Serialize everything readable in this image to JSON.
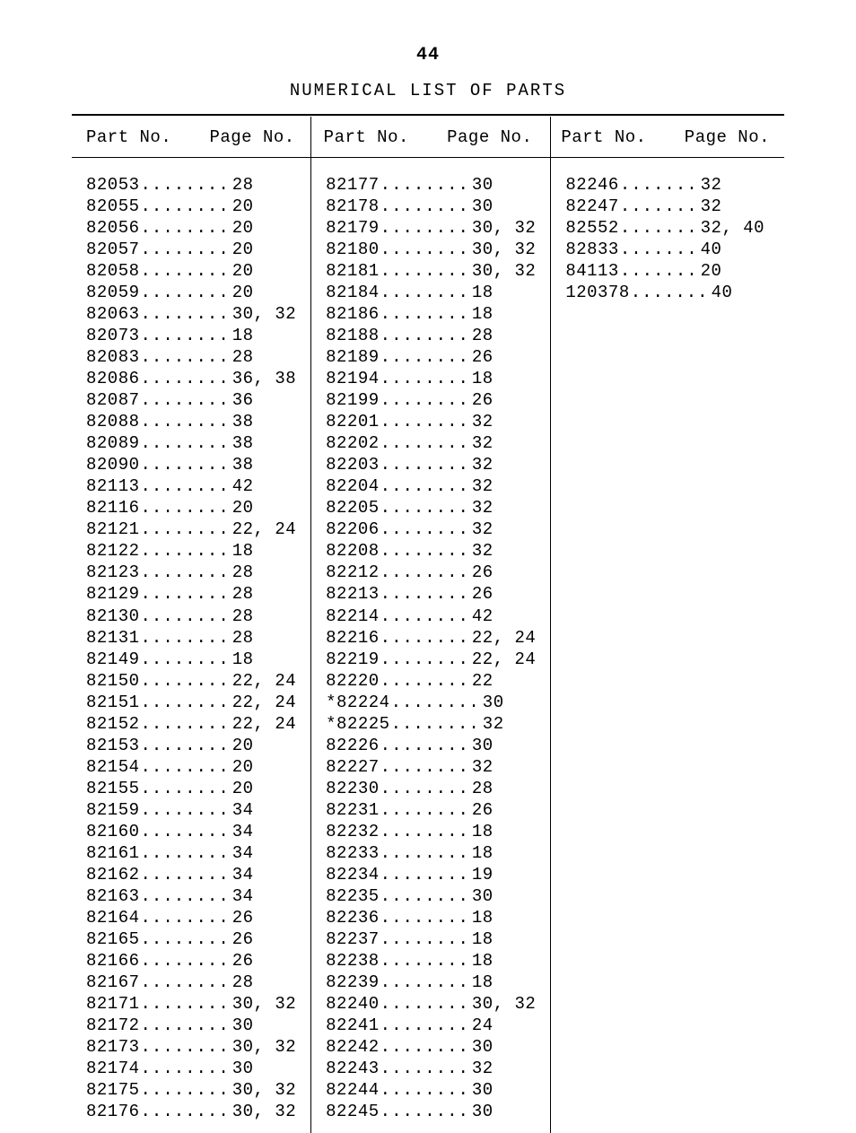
{
  "page_number": "44",
  "title": "NUMERICAL LIST OF PARTS",
  "header": {
    "part": "Part No.",
    "page": "Page No."
  },
  "dots": "........",
  "dots_short": ".......",
  "columns": [
    [
      {
        "part": "82053",
        "page": "28"
      },
      {
        "part": "82055",
        "page": "20"
      },
      {
        "part": "82056",
        "page": "20"
      },
      {
        "part": "82057",
        "page": "20"
      },
      {
        "part": "82058",
        "page": "20"
      },
      {
        "part": "82059",
        "page": "20"
      },
      {
        "part": "82063",
        "page": "30, 32"
      },
      {
        "part": "82073",
        "page": "18"
      },
      {
        "part": "82083",
        "page": "28"
      },
      {
        "part": "82086",
        "page": "36, 38"
      },
      {
        "part": "82087",
        "page": "36"
      },
      {
        "part": "82088",
        "page": "38"
      },
      {
        "part": "82089",
        "page": "38"
      },
      {
        "part": "82090",
        "page": "38"
      },
      {
        "part": "82113",
        "page": "42"
      },
      {
        "part": "82116",
        "page": "20"
      },
      {
        "part": "82121",
        "page": "22, 24"
      },
      {
        "part": "82122",
        "page": "18"
      },
      {
        "part": "82123",
        "page": "28"
      },
      {
        "part": "82129",
        "page": "28"
      },
      {
        "part": "82130",
        "page": "28"
      },
      {
        "part": "82131",
        "page": "28"
      },
      {
        "part": "82149",
        "page": "18"
      },
      {
        "part": "82150",
        "page": "22, 24"
      },
      {
        "part": "82151",
        "page": "22, 24"
      },
      {
        "part": "82152",
        "page": "22, 24"
      },
      {
        "part": "82153",
        "page": "20"
      },
      {
        "part": "82154",
        "page": "20"
      },
      {
        "part": "82155",
        "page": "20"
      },
      {
        "part": "82159",
        "page": "34"
      },
      {
        "part": "82160",
        "page": "34"
      },
      {
        "part": "82161",
        "page": "34"
      },
      {
        "part": "82162",
        "page": "34"
      },
      {
        "part": "82163",
        "page": "34"
      },
      {
        "part": "82164",
        "page": "26"
      },
      {
        "part": "82165",
        "page": "26"
      },
      {
        "part": "82166",
        "page": "26"
      },
      {
        "part": "82167",
        "page": "28"
      },
      {
        "part": "82171",
        "page": "30, 32"
      },
      {
        "part": "82172",
        "page": "30"
      },
      {
        "part": "82173",
        "page": "30, 32"
      },
      {
        "part": "82174",
        "page": "30"
      },
      {
        "part": "82175",
        "page": "30, 32"
      },
      {
        "part": "82176",
        "page": "30, 32"
      }
    ],
    [
      {
        "part": "82177",
        "page": "30"
      },
      {
        "part": "82178",
        "page": "30"
      },
      {
        "part": "82179",
        "page": "30, 32"
      },
      {
        "part": "82180",
        "page": "30, 32"
      },
      {
        "part": "82181",
        "page": "30, 32"
      },
      {
        "part": "82184",
        "page": "18"
      },
      {
        "part": "82186",
        "page": "18"
      },
      {
        "part": "82188",
        "page": "28"
      },
      {
        "part": "82189",
        "page": "26"
      },
      {
        "part": "82194",
        "page": "18"
      },
      {
        "part": "82199",
        "page": "26"
      },
      {
        "part": "82201",
        "page": "32"
      },
      {
        "part": "82202",
        "page": "32"
      },
      {
        "part": "82203",
        "page": "32"
      },
      {
        "part": "82204",
        "page": "32"
      },
      {
        "part": "82205",
        "page": "32"
      },
      {
        "part": "82206",
        "page": "32"
      },
      {
        "part": "82208",
        "page": "32"
      },
      {
        "part": "82212",
        "page": "26"
      },
      {
        "part": "82213",
        "page": "26"
      },
      {
        "part": "82214",
        "page": "42"
      },
      {
        "part": "82216",
        "page": "22, 24"
      },
      {
        "part": "82219",
        "page": "22, 24"
      },
      {
        "part": "82220",
        "page": "22"
      },
      {
        "part": "*82224",
        "page": "30"
      },
      {
        "part": "*82225",
        "page": "32"
      },
      {
        "part": "82226",
        "page": "30"
      },
      {
        "part": "82227",
        "page": "32"
      },
      {
        "part": "82230",
        "page": "28"
      },
      {
        "part": "82231",
        "page": "26"
      },
      {
        "part": "82232",
        "page": "18"
      },
      {
        "part": "82233",
        "page": "18"
      },
      {
        "part": "82234",
        "page": "19"
      },
      {
        "part": "82235",
        "page": "30"
      },
      {
        "part": "82236",
        "page": "18"
      },
      {
        "part": "82237",
        "page": "18"
      },
      {
        "part": "82238",
        "page": "18"
      },
      {
        "part": "82239",
        "page": "18"
      },
      {
        "part": "82240",
        "page": "30, 32"
      },
      {
        "part": "82241",
        "page": "24"
      },
      {
        "part": "82242",
        "page": "30"
      },
      {
        "part": "82243",
        "page": "32"
      },
      {
        "part": "82244",
        "page": "30"
      },
      {
        "part": "82245",
        "page": "30"
      }
    ],
    [
      {
        "part": "82246",
        "page": "32"
      },
      {
        "part": "82247",
        "page": "32"
      },
      {
        "part": "82552",
        "page": "32, 40"
      },
      {
        "part": "82833",
        "page": "40"
      },
      {
        "part": "84113",
        "page": "20"
      },
      {
        "part": "120378",
        "page": "40"
      }
    ]
  ]
}
